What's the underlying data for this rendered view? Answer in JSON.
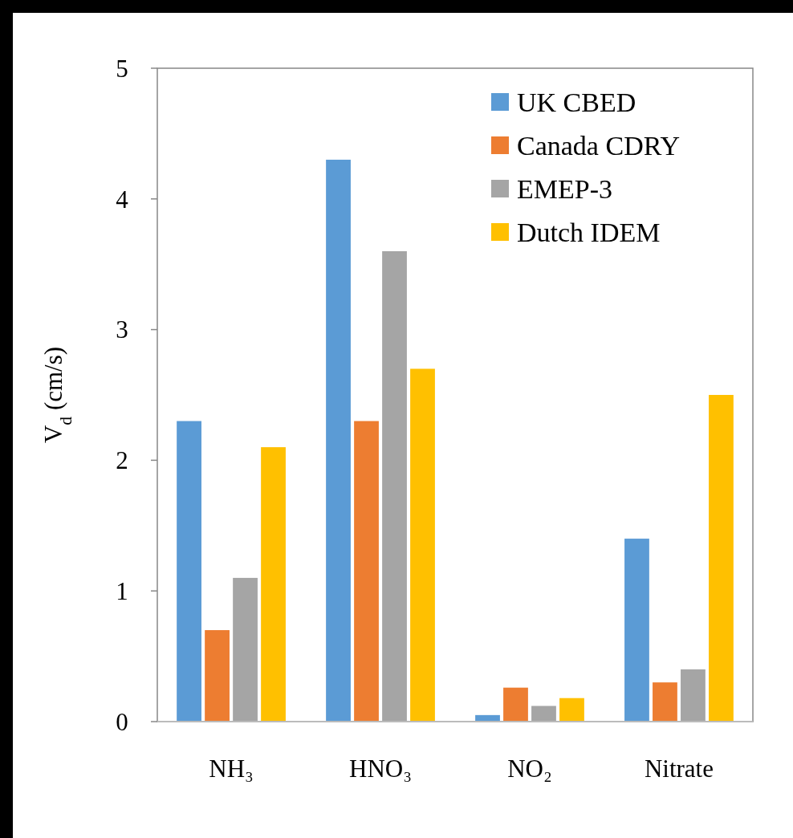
{
  "chart_data": {
    "type": "bar",
    "ylabel": "V$_{d}$ (cm/s)",
    "categories": [
      "NH₃",
      "HNO₃",
      "NO₂",
      "Nitrate"
    ],
    "series": [
      {
        "name": "UK CBED",
        "color": "#5b9bd5",
        "values": [
          2.3,
          4.3,
          0.05,
          1.4
        ]
      },
      {
        "name": "Canada CDRY",
        "color": "#ed7d31",
        "values": [
          0.7,
          2.3,
          0.26,
          0.3
        ]
      },
      {
        "name": "EMEP-3",
        "color": "#a5a5a5",
        "values": [
          1.1,
          3.6,
          0.12,
          0.4
        ]
      },
      {
        "name": "Dutch IDEM",
        "color": "#ffc000",
        "values": [
          2.1,
          2.7,
          0.18,
          2.5
        ]
      }
    ],
    "ylim": [
      0,
      5
    ],
    "yticks": [
      0,
      1,
      2,
      3,
      4,
      5
    ],
    "grid": false,
    "legend": "top right"
  }
}
